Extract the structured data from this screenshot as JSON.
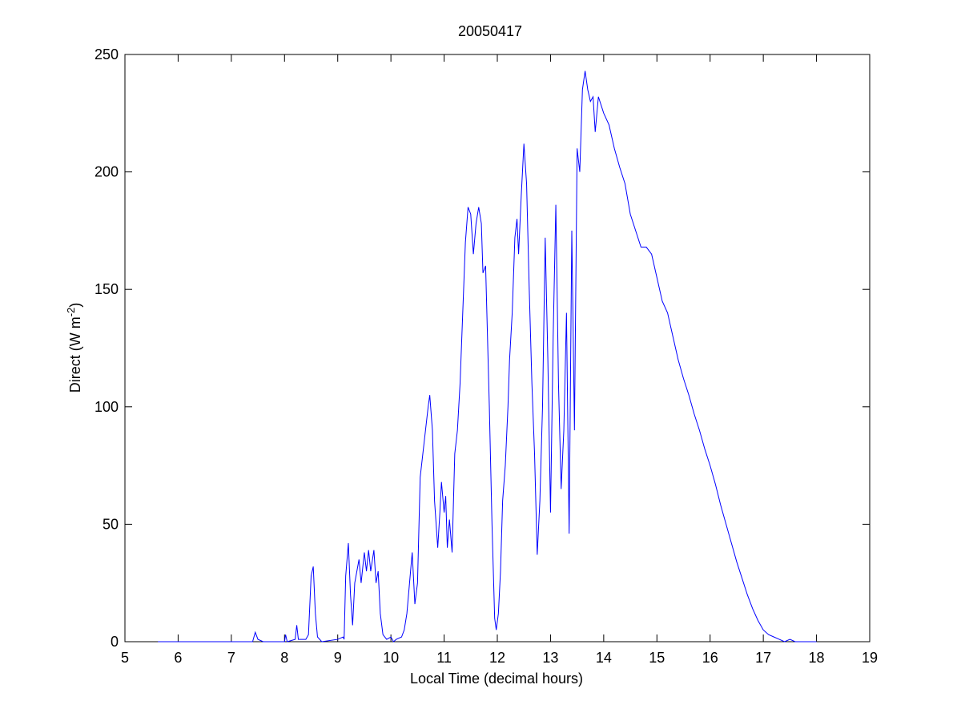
{
  "chart_data": {
    "type": "line",
    "title": "20050417",
    "xlabel": "Local Time (decimal hours)",
    "ylabel": {
      "text": "Direct (W m",
      "superscript": "-2",
      "suffix": ")"
    },
    "xlim": [
      5,
      19
    ],
    "ylim": [
      0,
      250
    ],
    "xticks": [
      5,
      6,
      7,
      8,
      9,
      10,
      11,
      12,
      13,
      14,
      15,
      16,
      17,
      18,
      19
    ],
    "yticks": [
      0,
      50,
      100,
      150,
      200,
      250
    ],
    "grid": false,
    "series": [
      {
        "color": "#0000ff",
        "x": [
          5.62,
          7.4,
          7.45,
          7.5,
          7.6,
          8.0,
          8.02,
          8.05,
          8.2,
          8.23,
          8.26,
          8.4,
          8.45,
          8.5,
          8.54,
          8.58,
          8.62,
          8.7,
          9.0,
          9.1,
          9.12,
          9.15,
          9.2,
          9.24,
          9.28,
          9.32,
          9.4,
          9.44,
          9.5,
          9.54,
          9.58,
          9.62,
          9.68,
          9.72,
          9.76,
          9.8,
          9.85,
          9.92,
          10.0,
          10.05,
          10.1,
          10.2,
          10.25,
          10.3,
          10.35,
          10.4,
          10.45,
          10.5,
          10.55,
          10.6,
          10.65,
          10.7,
          10.73,
          10.78,
          10.82,
          10.88,
          10.92,
          10.95,
          11.0,
          11.03,
          11.06,
          11.1,
          11.15,
          11.2,
          11.25,
          11.3,
          11.35,
          11.4,
          11.45,
          11.5,
          11.55,
          11.6,
          11.65,
          11.7,
          11.73,
          11.78,
          11.85,
          11.9,
          11.95,
          11.98,
          12.02,
          12.06,
          12.1,
          12.15,
          12.2,
          12.23,
          12.28,
          12.33,
          12.37,
          12.4,
          12.45,
          12.5,
          12.55,
          12.6,
          12.65,
          12.7,
          12.75,
          12.8,
          12.85,
          12.9,
          12.95,
          13.0,
          13.05,
          13.1,
          13.15,
          13.2,
          13.25,
          13.3,
          13.35,
          13.4,
          13.45,
          13.5,
          13.55,
          13.6,
          13.65,
          13.7,
          13.75,
          13.8,
          13.84,
          13.9,
          14.0,
          14.1,
          14.2,
          14.3,
          14.4,
          14.5,
          14.6,
          14.7,
          14.8,
          14.9,
          15.0,
          15.1,
          15.2,
          15.3,
          15.4,
          15.5,
          15.6,
          15.7,
          15.8,
          15.9,
          16.0,
          16.1,
          16.2,
          16.3,
          16.4,
          16.5,
          16.6,
          16.7,
          16.8,
          16.9,
          17.0,
          17.1,
          17.2,
          17.3,
          17.4,
          17.5,
          17.6,
          18.0
        ],
        "values": [
          0,
          0,
          4,
          1,
          0,
          0,
          3,
          0,
          1,
          7,
          1,
          1,
          3,
          28,
          32,
          12,
          2,
          0,
          1,
          2,
          1,
          28,
          42,
          20,
          7,
          25,
          35,
          25,
          38,
          30,
          39,
          30,
          39,
          25,
          30,
          12,
          3,
          1,
          2,
          0,
          1,
          2,
          5,
          12,
          25,
          38,
          16,
          25,
          70,
          80,
          90,
          100,
          105,
          90,
          60,
          40,
          55,
          68,
          55,
          62,
          40,
          52,
          38,
          80,
          90,
          110,
          140,
          170,
          185,
          182,
          165,
          178,
          185,
          178,
          157,
          160,
          100,
          50,
          10,
          5,
          12,
          30,
          60,
          75,
          100,
          120,
          140,
          172,
          180,
          165,
          190,
          212,
          195,
          150,
          110,
          80,
          37,
          60,
          100,
          172,
          120,
          55,
          130,
          186,
          110,
          65,
          90,
          140,
          46,
          175,
          90,
          210,
          200,
          235,
          243,
          235,
          230,
          232,
          217,
          232,
          225,
          220,
          210,
          202,
          195,
          182,
          175,
          168,
          168,
          165,
          155,
          145,
          140,
          130,
          120,
          112,
          105,
          97,
          90,
          82,
          75,
          67,
          58,
          50,
          42,
          34,
          27,
          20,
          14,
          9,
          5,
          3,
          2,
          1,
          0,
          1,
          0,
          0
        ]
      }
    ]
  }
}
